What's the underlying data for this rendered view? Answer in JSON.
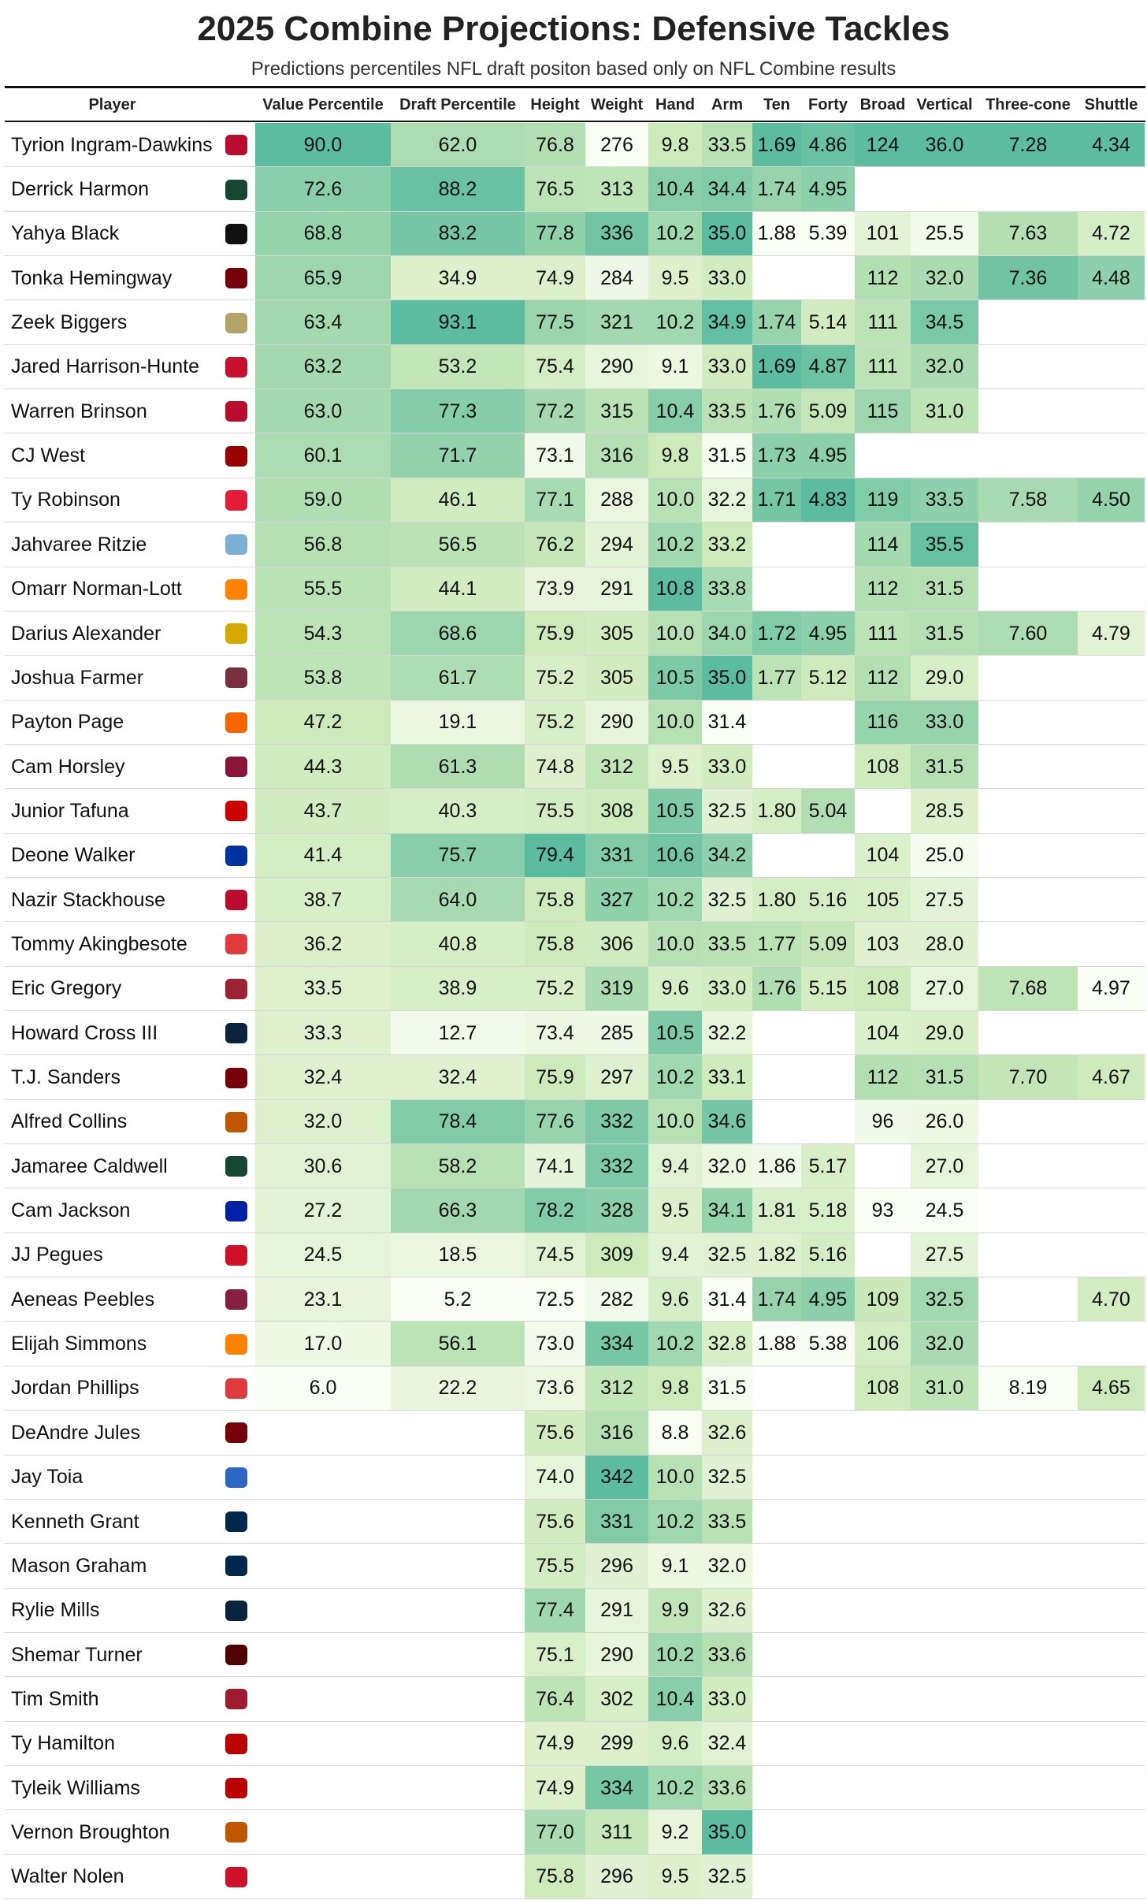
{
  "header": {
    "title": "2025 Combine Projections: Defensive Tackles",
    "subtitle": "Predictions percentiles NFL draft positon based only on NFL Combine results"
  },
  "table": {
    "columns": [
      "Player",
      "Value Percentile",
      "Draft Percentile",
      "Height",
      "Weight",
      "Hand",
      "Arm",
      "Ten",
      "Forty",
      "Broad",
      "Vertical",
      "Three-cone",
      "Shuttle"
    ],
    "rows": [
      {
        "player": "Tyrion Ingram-Dawkins",
        "cells": [
          "90.0",
          "62.0",
          "76.8",
          "276",
          "9.8",
          "33.5",
          "1.69",
          "4.86",
          "124",
          "36.0",
          "7.28",
          "4.34"
        ]
      },
      {
        "player": "Derrick Harmon",
        "cells": [
          "72.6",
          "88.2",
          "76.5",
          "313",
          "10.4",
          "34.4",
          "1.74",
          "4.95",
          null,
          null,
          null,
          null
        ]
      },
      {
        "player": "Yahya Black",
        "cells": [
          "68.8",
          "83.2",
          "77.8",
          "336",
          "10.2",
          "35.0",
          "1.88",
          "5.39",
          "101",
          "25.5",
          "7.63",
          "4.72"
        ]
      },
      {
        "player": "Tonka Hemingway",
        "cells": [
          "65.9",
          "34.9",
          "74.9",
          "284",
          "9.5",
          "33.0",
          null,
          null,
          "112",
          "32.0",
          "7.36",
          "4.48"
        ]
      },
      {
        "player": "Zeek Biggers",
        "cells": [
          "63.4",
          "93.1",
          "77.5",
          "321",
          "10.2",
          "34.9",
          "1.74",
          "5.14",
          "111",
          "34.5",
          null,
          null
        ]
      },
      {
        "player": "Jared Harrison-Hunte",
        "cells": [
          "63.2",
          "53.2",
          "75.4",
          "290",
          "9.1",
          "33.0",
          "1.69",
          "4.87",
          "111",
          "32.0",
          null,
          null
        ]
      },
      {
        "player": "Warren Brinson",
        "cells": [
          "63.0",
          "77.3",
          "77.2",
          "315",
          "10.4",
          "33.5",
          "1.76",
          "5.09",
          "115",
          "31.0",
          null,
          null
        ]
      },
      {
        "player": "CJ West",
        "cells": [
          "60.1",
          "71.7",
          "73.1",
          "316",
          "9.8",
          "31.5",
          "1.73",
          "4.95",
          null,
          null,
          null,
          null
        ]
      },
      {
        "player": "Ty Robinson",
        "cells": [
          "59.0",
          "46.1",
          "77.1",
          "288",
          "10.0",
          "32.2",
          "1.71",
          "4.83",
          "119",
          "33.5",
          "7.58",
          "4.50"
        ]
      },
      {
        "player": "Jahvaree Ritzie",
        "cells": [
          "56.8",
          "56.5",
          "76.2",
          "294",
          "10.2",
          "33.2",
          null,
          null,
          "114",
          "35.5",
          null,
          null
        ]
      },
      {
        "player": "Omarr Norman-Lott",
        "cells": [
          "55.5",
          "44.1",
          "73.9",
          "291",
          "10.8",
          "33.8",
          null,
          null,
          "112",
          "31.5",
          null,
          null
        ]
      },
      {
        "player": "Darius Alexander",
        "cells": [
          "54.3",
          "68.6",
          "75.9",
          "305",
          "10.0",
          "34.0",
          "1.72",
          "4.95",
          "111",
          "31.5",
          "7.60",
          "4.79"
        ]
      },
      {
        "player": "Joshua Farmer",
        "cells": [
          "53.8",
          "61.7",
          "75.2",
          "305",
          "10.5",
          "35.0",
          "1.77",
          "5.12",
          "112",
          "29.0",
          null,
          null
        ]
      },
      {
        "player": "Payton Page",
        "cells": [
          "47.2",
          "19.1",
          "75.2",
          "290",
          "10.0",
          "31.4",
          null,
          null,
          "116",
          "33.0",
          null,
          null
        ]
      },
      {
        "player": "Cam Horsley",
        "cells": [
          "44.3",
          "61.3",
          "74.8",
          "312",
          "9.5",
          "33.0",
          null,
          null,
          "108",
          "31.5",
          null,
          null
        ]
      },
      {
        "player": "Junior Tafuna",
        "cells": [
          "43.7",
          "40.3",
          "75.5",
          "308",
          "10.5",
          "32.5",
          "1.80",
          "5.04",
          null,
          "28.5",
          null,
          null
        ]
      },
      {
        "player": "Deone Walker",
        "cells": [
          "41.4",
          "75.7",
          "79.4",
          "331",
          "10.6",
          "34.2",
          null,
          null,
          "104",
          "25.0",
          null,
          null
        ]
      },
      {
        "player": "Nazir Stackhouse",
        "cells": [
          "38.7",
          "64.0",
          "75.8",
          "327",
          "10.2",
          "32.5",
          "1.80",
          "5.16",
          "105",
          "27.5",
          null,
          null
        ]
      },
      {
        "player": "Tommy Akingbesote",
        "cells": [
          "36.2",
          "40.8",
          "75.8",
          "306",
          "10.0",
          "33.5",
          "1.77",
          "5.09",
          "103",
          "28.0",
          null,
          null
        ]
      },
      {
        "player": "Eric Gregory",
        "cells": [
          "33.5",
          "38.9",
          "75.2",
          "319",
          "9.6",
          "33.0",
          "1.76",
          "5.15",
          "108",
          "27.0",
          "7.68",
          "4.97"
        ]
      },
      {
        "player": "Howard Cross III",
        "cells": [
          "33.3",
          "12.7",
          "73.4",
          "285",
          "10.5",
          "32.2",
          null,
          null,
          "104",
          "29.0",
          null,
          null
        ]
      },
      {
        "player": "T.J. Sanders",
        "cells": [
          "32.4",
          "32.4",
          "75.9",
          "297",
          "10.2",
          "33.1",
          null,
          null,
          "112",
          "31.5",
          "7.70",
          "4.67"
        ]
      },
      {
        "player": "Alfred Collins",
        "cells": [
          "32.0",
          "78.4",
          "77.6",
          "332",
          "10.0",
          "34.6",
          null,
          null,
          "96",
          "26.0",
          null,
          null
        ]
      },
      {
        "player": "Jamaree Caldwell",
        "cells": [
          "30.6",
          "58.2",
          "74.1",
          "332",
          "9.4",
          "32.0",
          "1.86",
          "5.17",
          null,
          "27.0",
          null,
          null
        ]
      },
      {
        "player": "Cam Jackson",
        "cells": [
          "27.2",
          "66.3",
          "78.2",
          "328",
          "9.5",
          "34.1",
          "1.81",
          "5.18",
          "93",
          "24.5",
          null,
          null
        ]
      },
      {
        "player": "JJ Pegues",
        "cells": [
          "24.5",
          "18.5",
          "74.5",
          "309",
          "9.4",
          "32.5",
          "1.82",
          "5.16",
          null,
          "27.5",
          null,
          null
        ]
      },
      {
        "player": "Aeneas Peebles",
        "cells": [
          "23.1",
          "5.2",
          "72.5",
          "282",
          "9.6",
          "31.4",
          "1.74",
          "4.95",
          "109",
          "32.5",
          null,
          "4.70"
        ]
      },
      {
        "player": "Elijah Simmons",
        "cells": [
          "17.0",
          "56.1",
          "73.0",
          "334",
          "10.2",
          "32.8",
          "1.88",
          "5.38",
          "106",
          "32.0",
          null,
          null
        ]
      },
      {
        "player": "Jordan Phillips",
        "cells": [
          "6.0",
          "22.2",
          "73.6",
          "312",
          "9.8",
          "31.5",
          null,
          null,
          "108",
          "31.0",
          "8.19",
          "4.65"
        ]
      },
      {
        "player": "DeAndre Jules",
        "cells": [
          null,
          null,
          "75.6",
          "316",
          "8.8",
          "32.6",
          null,
          null,
          null,
          null,
          null,
          null
        ]
      },
      {
        "player": "Jay Toia",
        "cells": [
          null,
          null,
          "74.0",
          "342",
          "10.0",
          "32.5",
          null,
          null,
          null,
          null,
          null,
          null
        ]
      },
      {
        "player": "Kenneth Grant",
        "cells": [
          null,
          null,
          "75.6",
          "331",
          "10.2",
          "33.5",
          null,
          null,
          null,
          null,
          null,
          null
        ]
      },
      {
        "player": "Mason Graham",
        "cells": [
          null,
          null,
          "75.5",
          "296",
          "9.1",
          "32.0",
          null,
          null,
          null,
          null,
          null,
          null
        ]
      },
      {
        "player": "Rylie Mills",
        "cells": [
          null,
          null,
          "77.4",
          "291",
          "9.9",
          "32.6",
          null,
          null,
          null,
          null,
          null,
          null
        ]
      },
      {
        "player": "Shemar Turner",
        "cells": [
          null,
          null,
          "75.1",
          "290",
          "10.2",
          "33.6",
          null,
          null,
          null,
          null,
          null,
          null
        ]
      },
      {
        "player": "Tim Smith",
        "cells": [
          null,
          null,
          "76.4",
          "302",
          "10.4",
          "33.0",
          null,
          null,
          null,
          null,
          null,
          null
        ]
      },
      {
        "player": "Ty Hamilton",
        "cells": [
          null,
          null,
          "74.9",
          "299",
          "9.6",
          "32.4",
          null,
          null,
          null,
          null,
          null,
          null
        ]
      },
      {
        "player": "Tyleik Williams",
        "cells": [
          null,
          null,
          "74.9",
          "334",
          "10.2",
          "33.6",
          null,
          null,
          null,
          null,
          null,
          null
        ]
      },
      {
        "player": "Vernon Broughton",
        "cells": [
          null,
          null,
          "77.0",
          "311",
          "9.2",
          "35.0",
          null,
          null,
          null,
          null,
          null,
          null
        ]
      },
      {
        "player": "Walter Nolen",
        "cells": [
          null,
          null,
          "75.8",
          "296",
          "9.5",
          "32.5",
          null,
          null,
          null,
          null,
          null,
          null
        ]
      }
    ]
  }
}
